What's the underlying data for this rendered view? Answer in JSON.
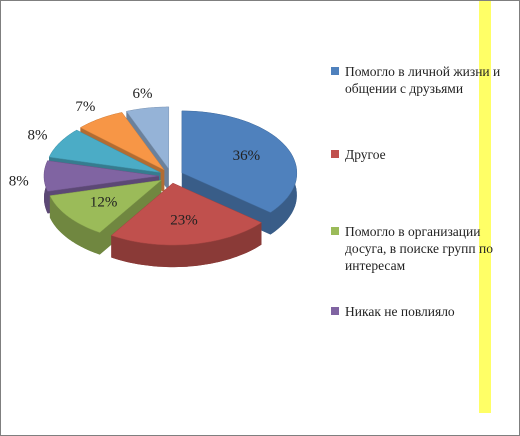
{
  "chart_data": {
    "type": "pie",
    "categories": [
      "Помогло в личной жизни и общении с друзьями",
      "Другое",
      "Помогло в организации досуга, в поиске групп по интересам",
      "Никак не повлияло",
      null,
      null,
      null
    ],
    "values": [
      36,
      23,
      12,
      8,
      8,
      7,
      6
    ],
    "value_labels": [
      "36%",
      "23%",
      "12%",
      "8%",
      "8%",
      "7%",
      "6%"
    ],
    "colors": [
      "#4f81bd",
      "#c0504d",
      "#9bbb59",
      "#8064a2",
      "#4bacc6",
      "#f79646",
      "#95b3d7"
    ],
    "legend": "right"
  }
}
